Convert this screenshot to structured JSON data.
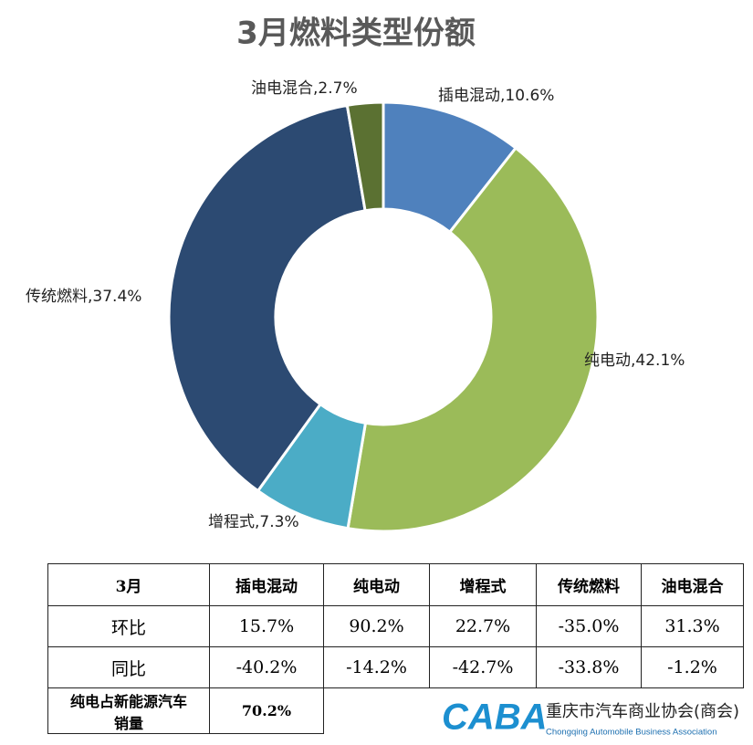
{
  "chart_data": {
    "type": "pie",
    "title": "3月燃料类型份额",
    "values": [
      10.6,
      42.1,
      7.3,
      37.4,
      2.7
    ],
    "value_labels": [
      "插电混动,10.6%",
      "纯电动,42.1%",
      "增程式,7.3%",
      "传统燃料,37.4%",
      "油电混合,2.7%"
    ],
    "colors": [
      "#4f81bd",
      "#9bbb59",
      "#4bacc6",
      "#2c4a72",
      "#5b7132"
    ],
    "donut": true
  },
  "table": {
    "header": [
      "3月",
      "插电混动",
      "纯电动",
      "增程式",
      "传统燃料",
      "油电混合"
    ],
    "rows": [
      [
        "环比",
        "15.7%",
        "90.2%",
        "22.7%",
        "-35.0%",
        "31.3%"
      ],
      [
        "同比",
        "-40.2%",
        "-14.2%",
        "-42.7%",
        "-33.8%",
        "-1.2%"
      ]
    ],
    "footer": [
      "纯电占新能源汽车销量",
      "70.2%"
    ]
  },
  "logo": {
    "mark": "CABA",
    "name": "重庆市汽车商业协会(商会)",
    "english": "Chongqing Automobile Business Association"
  }
}
